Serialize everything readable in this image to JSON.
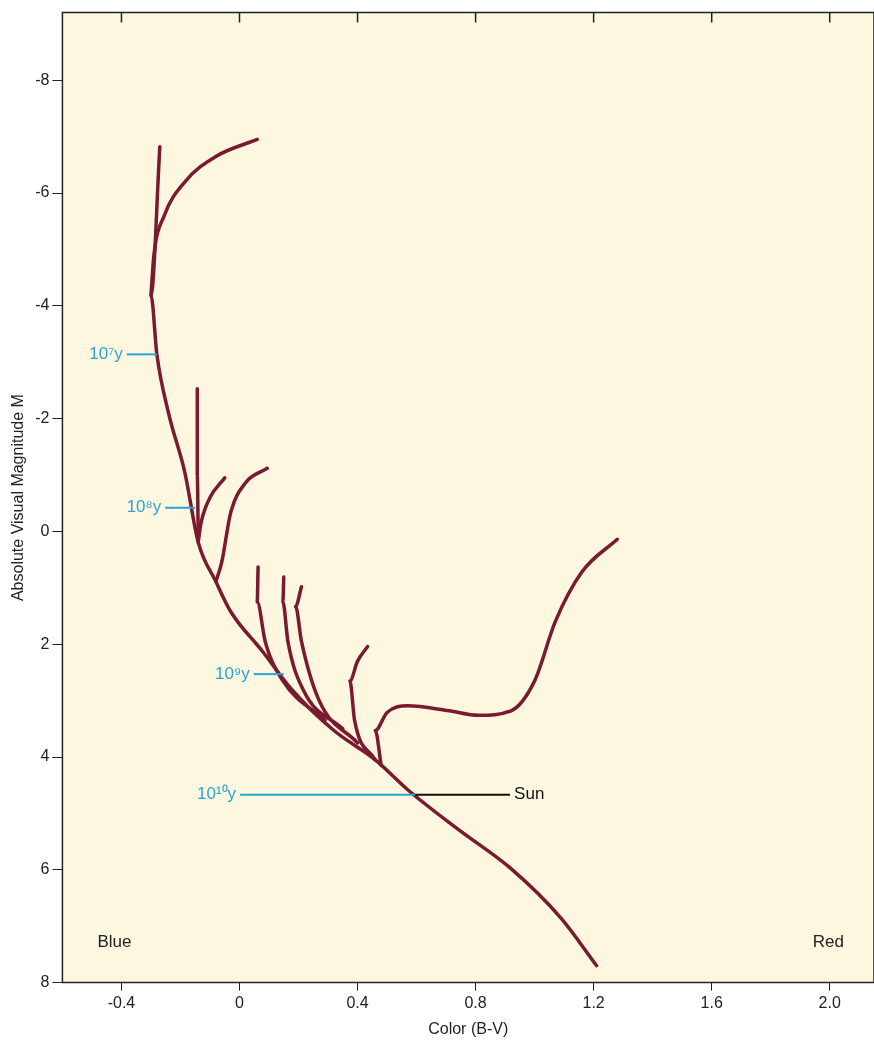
{
  "chart_data": {
    "type": "line",
    "xlabel": "Color (B-V)",
    "ylabel": "Absolute Visual Magnitude M",
    "xlim": [
      -0.6,
      2.15
    ],
    "xticks": [
      -0.4,
      0,
      0.4,
      0.8,
      1.2,
      1.6,
      {
        "value": 2,
        "label": "2.0"
      }
    ],
    "ylim": [
      8,
      -9.2
    ],
    "yticks": [
      -8,
      -6,
      -4,
      -2,
      0,
      2,
      4,
      6,
      8
    ],
    "grid": false,
    "legend": false,
    "marker": "none",
    "line_style": "solid",
    "series": [
      {
        "color": "#7a1a2e",
        "x": [
          -0.27,
          -0.3,
          -0.28,
          -0.24,
          -0.185,
          -0.14,
          -0.08,
          -0.03,
          0.077,
          0.18,
          0.32,
          0.46,
          0.57,
          0.74,
          0.92,
          1.09,
          1.21
        ],
        "values": [
          -6.82,
          -4.19,
          -3.14,
          -2.09,
          -1.04,
          0.19,
          0.89,
          1.42,
          2.12,
          2.82,
          3.53,
          4.05,
          4.58,
          5.28,
          5.98,
          6.86,
          7.7
        ]
      },
      {
        "color": "#7a1a2e",
        "x": [
          -0.3,
          -0.29,
          -0.255,
          -0.185,
          -0.08,
          0.06
        ],
        "values": [
          -4.19,
          -4.9,
          -5.6,
          -6.2,
          -6.65,
          -6.95
        ]
      },
      {
        "color": "#7a1a2e",
        "x": [
          -0.14,
          -0.143,
          -0.143
        ],
        "values": [
          0.0,
          -1.0,
          -2.53
        ]
      },
      {
        "color": "#7a1a2e",
        "x": [
          -0.14,
          -0.13,
          -0.1,
          -0.05
        ],
        "values": [
          0.19,
          -0.16,
          -0.6,
          -0.95
        ]
      },
      {
        "color": "#7a1a2e",
        "x": [
          -0.08,
          -0.06,
          -0.03,
          0.02,
          0.094
        ],
        "values": [
          0.89,
          0.54,
          -0.33,
          -0.86,
          -1.12
        ]
      },
      {
        "color": "#7a1a2e",
        "x": [
          0.29,
          0.147,
          0.087,
          0.06,
          0.063
        ],
        "values": [
          3.35,
          2.65,
          1.95,
          1.25,
          0.63
        ]
      },
      {
        "color": "#7a1a2e",
        "x": [
          0.35,
          0.217,
          0.164,
          0.147,
          0.15
        ],
        "values": [
          3.5,
          2.82,
          1.95,
          1.25,
          0.81
        ]
      },
      {
        "color": "#7a1a2e",
        "x": [
          0.4,
          0.27,
          0.21,
          0.19,
          0.21
        ],
        "values": [
          3.75,
          3.0,
          1.95,
          1.33,
          0.98
        ]
      },
      {
        "color": "#7a1a2e",
        "x": [
          0.46,
          0.39,
          0.374,
          0.4,
          0.434
        ],
        "values": [
          4.05,
          3.35,
          2.65,
          2.3,
          2.04
        ]
      },
      {
        "color": "#7a1a2e",
        "x": [
          0.48,
          0.46,
          0.5,
          0.57,
          0.71,
          0.81,
          0.92,
          1.0,
          1.07,
          1.16,
          1.28
        ],
        "values": [
          4.15,
          3.53,
          3.21,
          3.09,
          3.18,
          3.26,
          3.18,
          2.65,
          1.6,
          0.72,
          0.14
        ]
      }
    ],
    "annotations": [
      {
        "text": "10⁷y",
        "x": -0.28,
        "y": -3.14
      },
      {
        "text": "10⁸y",
        "x": -0.15,
        "y": -0.42
      },
      {
        "text": "10⁹y",
        "x": 0.15,
        "y": 2.53
      },
      {
        "text": "10¹⁰y",
        "x": 0.595,
        "y": 4.67
      },
      {
        "text": "Sun",
        "x": 0.595,
        "y": 4.67
      },
      "Blue",
      "Red"
    ]
  }
}
